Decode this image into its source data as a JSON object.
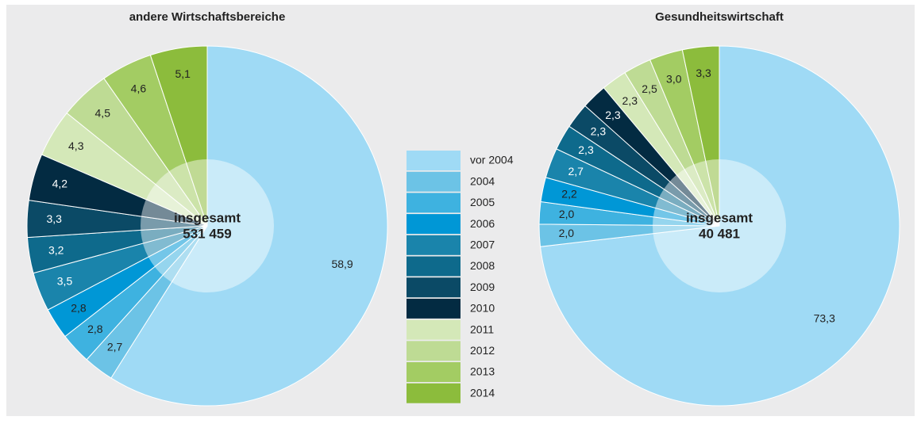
{
  "chart_data": [
    {
      "type": "pie",
      "title": "andere Wirtschaftsbereiche",
      "center_label": "insgesamt",
      "total": "531 459",
      "categories": [
        "vor 2004",
        "2004",
        "2005",
        "2006",
        "2007",
        "2008",
        "2009",
        "2010",
        "2011",
        "2012",
        "2013",
        "2014"
      ],
      "values": [
        58.9,
        2.7,
        2.8,
        2.8,
        3.5,
        3.2,
        3.3,
        4.2,
        4.3,
        4.5,
        4.6,
        5.1
      ],
      "value_labels": [
        "58,9",
        "2,7",
        "2,8",
        "2,8",
        "3,5",
        "3,2",
        "3,3",
        "4,2",
        "4,3",
        "4,5",
        "4,6",
        "5,1"
      ],
      "colors": [
        "#9fdaf5",
        "#6cc3e6",
        "#3eb2e0",
        "#0097d6",
        "#1a84ab",
        "#0e6a8c",
        "#0b4a66",
        "#032b42",
        "#d4e8b8",
        "#bedb94",
        "#a3cc63",
        "#8cbc3c"
      ],
      "legend": "center"
    },
    {
      "type": "pie",
      "title": "Gesundheitswirtschaft",
      "center_label": "insgesamt",
      "total": "40 481",
      "categories": [
        "vor 2004",
        "2004",
        "2005",
        "2006",
        "2007",
        "2008",
        "2009",
        "2010",
        "2011",
        "2012",
        "2013",
        "2014"
      ],
      "values": [
        73.3,
        2.0,
        2.0,
        2.2,
        2.7,
        2.3,
        2.3,
        2.3,
        2.3,
        2.5,
        3.0,
        3.3
      ],
      "value_labels": [
        "73,3",
        "2,0",
        "2,0",
        "2,2",
        "2,7",
        "2,3",
        "2,3",
        "2,3",
        "2,3",
        "2,5",
        "3,0",
        "3,3"
      ],
      "colors": [
        "#9fdaf5",
        "#6cc3e6",
        "#3eb2e0",
        "#0097d6",
        "#1a84ab",
        "#0e6a8c",
        "#0b4a66",
        "#032b42",
        "#d4e8b8",
        "#bedb94",
        "#a3cc63",
        "#8cbc3c"
      ]
    }
  ]
}
